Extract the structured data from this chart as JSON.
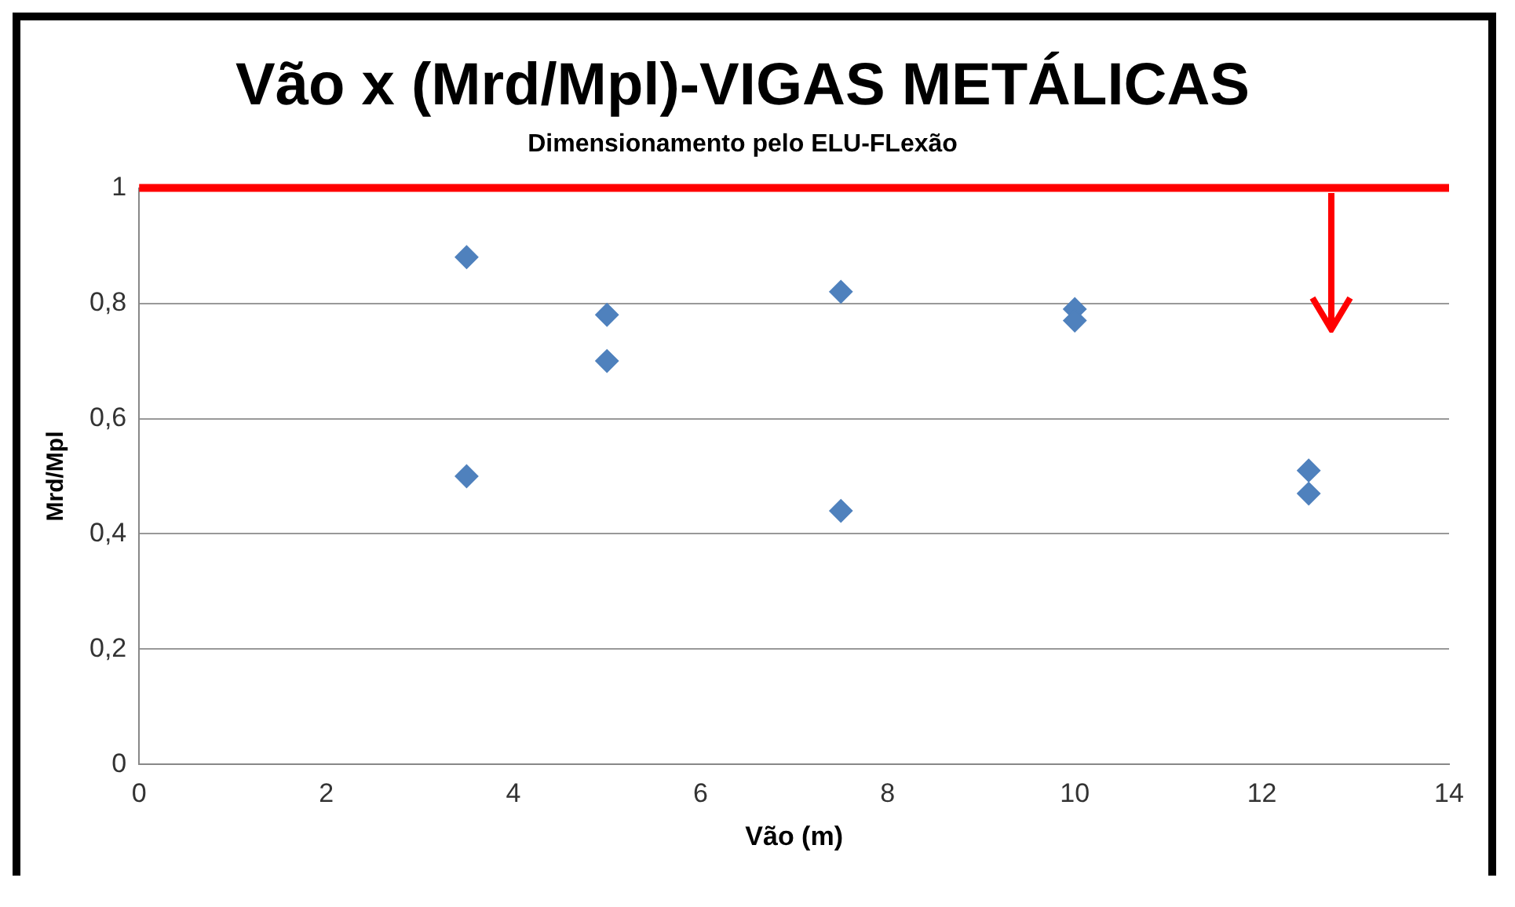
{
  "chart_data": {
    "type": "scatter",
    "title": "Vão x (Mrd/Mpl)-VIGAS METÁLICAS",
    "subtitle": "Dimensionamento pelo ELU-FLexão",
    "xlabel": "Vão (m)",
    "ylabel": "Mrd/Mpl",
    "series": [
      {
        "color": "#4f81bd",
        "x": [
          3.5,
          3.5,
          5,
          5,
          7.5,
          7.5,
          10,
          10,
          12.5,
          12.5
        ],
        "values": [
          0.88,
          0.5,
          0.78,
          0.7,
          0.82,
          0.44,
          0.79,
          0.77,
          0.51,
          0.47
        ]
      }
    ],
    "xlim": [
      0,
      14
    ],
    "xticks": [
      0,
      2,
      4,
      6,
      8,
      10,
      12,
      14
    ],
    "ylim": [
      0,
      1
    ],
    "yticks": [
      {
        "value": 0,
        "label": "0"
      },
      {
        "value": 0.2,
        "label": "0,2"
      },
      {
        "value": 0.4,
        "label": "0,4"
      },
      {
        "value": 0.6,
        "label": "0,6"
      },
      {
        "value": 0.8,
        "label": "0,8"
      },
      {
        "value": 1,
        "label": "1"
      }
    ],
    "grid": "y",
    "legend": false,
    "marker": "diamond",
    "ref_lines": [
      {
        "axis": "y",
        "value": 1,
        "color": "#ff0000"
      }
    ]
  }
}
